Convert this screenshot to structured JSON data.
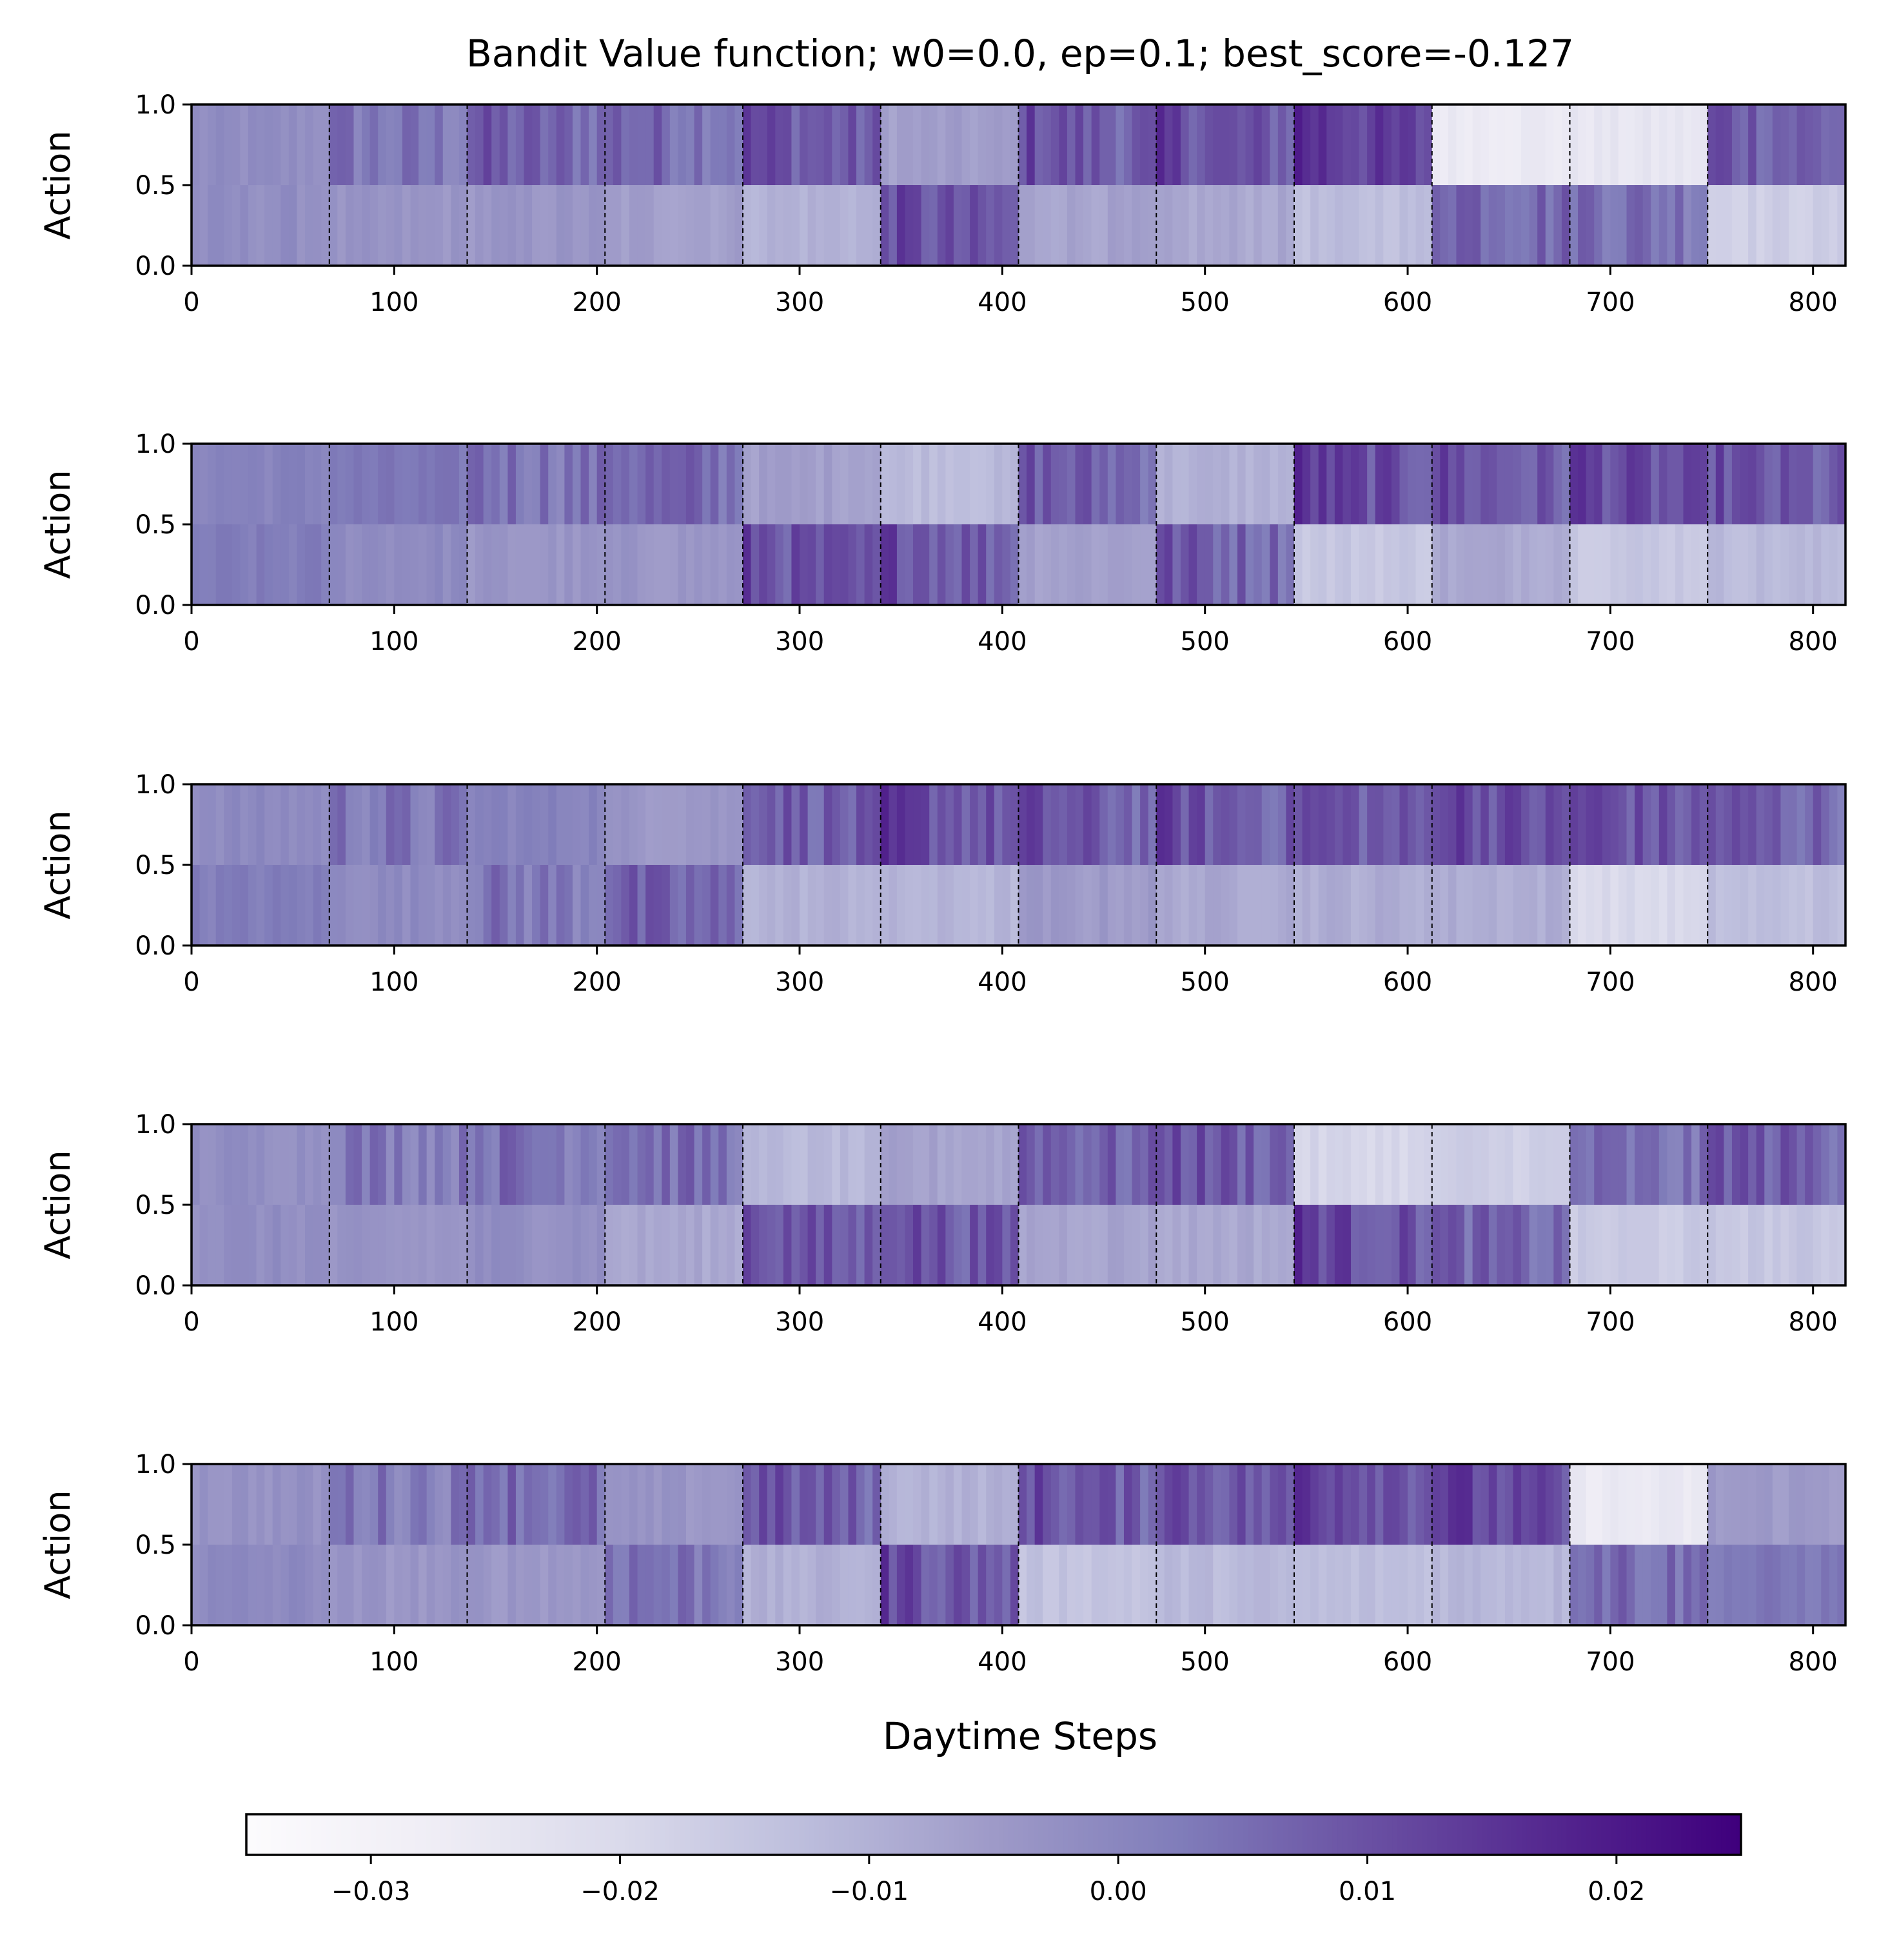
{
  "chart_data": {
    "type": "heatmap",
    "title": "Bandit Value function; w0=0.0, ep=0.1; best_score=-0.127",
    "xlabel": "Daytime Steps",
    "ylabel": "Action",
    "xlim": [
      0,
      816
    ],
    "ylim": [
      0,
      1
    ],
    "x_ticks": [
      "0",
      "100",
      "200",
      "300",
      "400",
      "500",
      "600",
      "700",
      "800"
    ],
    "y_ticks": [
      "0.0",
      "0.5",
      "1.0"
    ],
    "colormap": "Purples",
    "color_low": "#fcfbfd",
    "color_high": "#3f007d",
    "colorbar": {
      "range": [
        -0.035,
        0.025
      ],
      "ticks": [
        "−0.03",
        "−0.02",
        "−0.01",
        "0.00",
        "0.01",
        "0.02"
      ],
      "tick_values": [
        -0.03,
        -0.02,
        -0.01,
        0.0,
        0.01,
        0.02
      ]
    },
    "day_boundaries": [
      68,
      136,
      204,
      272,
      340,
      408,
      476,
      544,
      612,
      680,
      748
    ],
    "segment_width": 68,
    "rows": [
      "Action 1 (upper band, 0.5–1.0)",
      "Action 0 (lower band, 0.0–0.5)"
    ],
    "panels": [
      {
        "top": [
          -0.002,
          0.004,
          0.009,
          0.008,
          0.012,
          -0.006,
          0.012,
          0.013,
          0.018,
          -0.026,
          -0.025,
          0.011
        ],
        "bottom": [
          -0.002,
          -0.004,
          -0.004,
          -0.006,
          -0.01,
          0.012,
          -0.007,
          -0.008,
          -0.013,
          0.01,
          0.007,
          -0.017
        ]
      },
      {
        "top": [
          0.001,
          0.003,
          0.006,
          0.008,
          -0.006,
          -0.012,
          0.01,
          -0.01,
          0.015,
          0.012,
          0.014,
          0.011
        ],
        "bottom": [
          0.002,
          -0.001,
          -0.004,
          -0.004,
          0.012,
          0.013,
          -0.006,
          0.01,
          -0.015,
          -0.008,
          -0.015,
          -0.012
        ]
      },
      {
        "top": [
          -0.001,
          0.004,
          0.001,
          -0.004,
          0.011,
          0.014,
          0.011,
          0.012,
          0.012,
          0.015,
          0.013,
          0.01
        ],
        "bottom": [
          0.002,
          -0.001,
          0.004,
          0.008,
          -0.01,
          -0.011,
          -0.005,
          -0.008,
          -0.009,
          -0.009,
          -0.02,
          -0.013
        ]
      },
      {
        "top": [
          -0.002,
          0.004,
          0.006,
          0.007,
          -0.012,
          -0.007,
          0.01,
          0.012,
          -0.019,
          -0.017,
          0.005,
          0.011
        ],
        "bottom": [
          -0.002,
          -0.004,
          -0.002,
          -0.008,
          0.012,
          0.013,
          -0.007,
          -0.008,
          0.015,
          0.008,
          -0.016,
          -0.015
        ]
      },
      {
        "top": [
          -0.003,
          0.004,
          0.008,
          -0.004,
          0.011,
          -0.01,
          0.012,
          0.013,
          0.017,
          0.015,
          -0.026,
          -0.005
        ],
        "bottom": [
          -0.001,
          -0.004,
          -0.004,
          0.006,
          -0.01,
          0.013,
          -0.014,
          -0.012,
          -0.013,
          -0.011,
          0.008,
          0.003
        ]
      }
    ]
  }
}
